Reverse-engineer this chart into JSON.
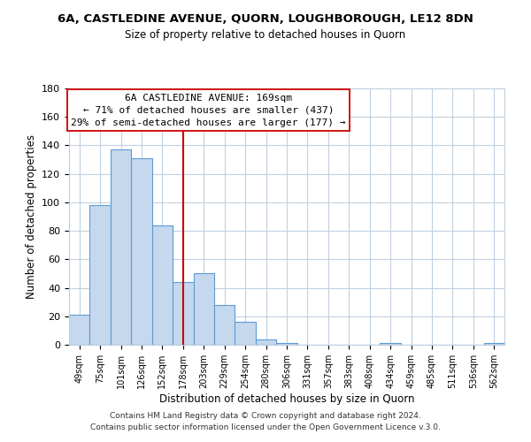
{
  "title": "6A, CASTLEDINE AVENUE, QUORN, LOUGHBOROUGH, LE12 8DN",
  "subtitle": "Size of property relative to detached houses in Quorn",
  "xlabel": "Distribution of detached houses by size in Quorn",
  "ylabel": "Number of detached properties",
  "bar_labels": [
    "49sqm",
    "75sqm",
    "101sqm",
    "126sqm",
    "152sqm",
    "178sqm",
    "203sqm",
    "229sqm",
    "254sqm",
    "280sqm",
    "306sqm",
    "331sqm",
    "357sqm",
    "383sqm",
    "408sqm",
    "434sqm",
    "459sqm",
    "485sqm",
    "511sqm",
    "536sqm",
    "562sqm"
  ],
  "bar_values": [
    21,
    98,
    137,
    131,
    84,
    44,
    50,
    28,
    16,
    4,
    1,
    0,
    0,
    0,
    0,
    1,
    0,
    0,
    0,
    0,
    1
  ],
  "bar_color": "#c5d8ed",
  "bar_edge_color": "#5b9bd5",
  "highlight_index": 5,
  "highlight_line_color": "#cc0000",
  "ylim": [
    0,
    180
  ],
  "yticks": [
    0,
    20,
    40,
    60,
    80,
    100,
    120,
    140,
    160,
    180
  ],
  "annotation_title": "6A CASTLEDINE AVENUE: 169sqm",
  "annotation_line1": "← 71% of detached houses are smaller (437)",
  "annotation_line2": "29% of semi-detached houses are larger (177) →",
  "annotation_box_color": "#ffffff",
  "annotation_box_edge": "#cc0000",
  "footer_line1": "Contains HM Land Registry data © Crown copyright and database right 2024.",
  "footer_line2": "Contains public sector information licensed under the Open Government Licence v.3.0.",
  "background_color": "#ffffff",
  "grid_color": "#c0d0e0"
}
